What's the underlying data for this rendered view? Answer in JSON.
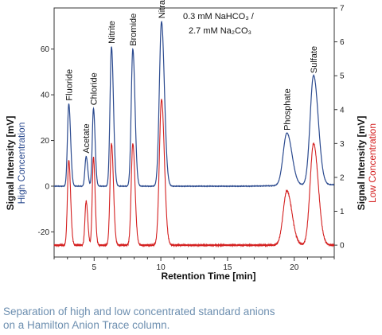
{
  "caption": {
    "line1": "Separation of high and low concentrated standard anions",
    "line2": "on a Hamilton Anion Trace column."
  },
  "chart_data": {
    "type": "line",
    "title": "",
    "eluent_line1": "0.3 mM NaHCO₃ /",
    "eluent_line2": "2.7 mM Na₂CO₃",
    "xlabel": "Retention Time [min]",
    "ylabel_left": {
      "main": "Signal Intensity [mV]",
      "series": "High Concentration"
    },
    "ylabel_right": {
      "main": "Signal Intensity [mV]",
      "series": "Low Concentration"
    },
    "xlim": [
      2,
      23
    ],
    "ylim_left": [
      -31,
      78
    ],
    "ylim_right": [
      -0.35,
      7
    ],
    "xticks": [
      5,
      10,
      15,
      20
    ],
    "yticks_left": [
      -20,
      0,
      20,
      40,
      60
    ],
    "yticks_right": [
      0,
      1,
      2,
      3,
      4,
      5,
      6,
      7
    ],
    "grid": false,
    "colors": {
      "high": "#2b4a8f",
      "low": "#d42020",
      "axis": "#333333"
    },
    "peaks": [
      {
        "name": "Fluoride",
        "rt": 3.1,
        "high_mV": 36,
        "low_mV": 2.5,
        "width": 0.1
      },
      {
        "name": "Acetate",
        "rt": 4.4,
        "high_mV": 13,
        "low_mV": 1.3,
        "width": 0.09
      },
      {
        "name": "Chloride",
        "rt": 4.95,
        "high_mV": 34,
        "low_mV": 2.6,
        "width": 0.09
      },
      {
        "name": "Nitrite",
        "rt": 6.3,
        "high_mV": 61,
        "low_mV": 3.0,
        "width": 0.11
      },
      {
        "name": "Bromide",
        "rt": 7.9,
        "high_mV": 60,
        "low_mV": 3.0,
        "width": 0.12
      },
      {
        "name": "Nitrate",
        "rt": 10.05,
        "high_mV": 72,
        "low_mV": 4.3,
        "width": 0.16
      },
      {
        "name": "Phosphate",
        "rt": 19.45,
        "high_mV": 23,
        "low_mV": 1.6,
        "width": 0.28
      },
      {
        "name": "Sulfate",
        "rt": 21.45,
        "high_mV": 48,
        "low_mV": 3.0,
        "width": 0.26
      }
    ],
    "series": [
      {
        "name": "High Concentration",
        "axis": "left",
        "baseline": 0
      },
      {
        "name": "Low Concentration",
        "axis": "right",
        "baseline": 0
      }
    ]
  }
}
